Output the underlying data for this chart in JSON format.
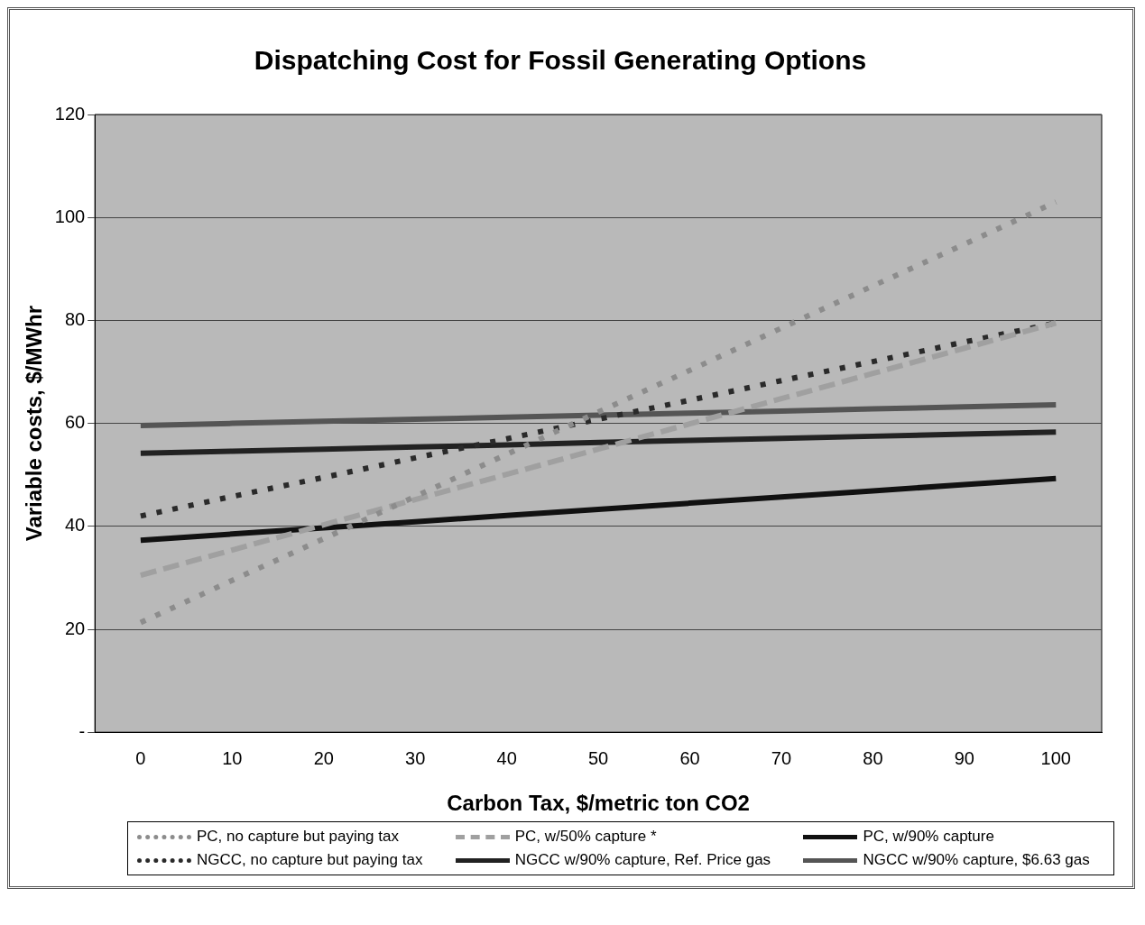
{
  "chart_data": {
    "type": "line",
    "title": "Dispatching Cost for Fossil Generating Options",
    "xlabel": "Carbon Tax, $/metric ton CO2",
    "ylabel": "Variable costs, $/MWhr",
    "categories": [
      "0",
      "10",
      "20",
      "30",
      "40",
      "50",
      "60",
      "70",
      "80",
      "90",
      "100"
    ],
    "ylim": [
      0,
      120
    ],
    "yticks": [
      {
        "value": 0,
        "label": "-"
      },
      20,
      40,
      60,
      80,
      100,
      120
    ],
    "grid": "y",
    "legend": "bottom",
    "marker": "none",
    "series": [
      {
        "name": "PC, no capture but paying tax",
        "color": "#8c8c8c",
        "line_style": "dotted",
        "values": [
          21.3,
          29.5,
          37.6,
          45.8,
          54.0,
          62.2,
          70.3,
          78.5,
          86.7,
          94.8,
          103.0
        ]
      },
      {
        "name": "PC, w/50% capture *",
        "color": "#a0a0a0",
        "line_style": "dashed",
        "values": [
          30.5,
          35.4,
          40.3,
          45.2,
          50.1,
          55.0,
          59.9,
          64.8,
          69.7,
          74.6,
          79.5
        ]
      },
      {
        "name": "PC, w/90% capture",
        "color": "#111111",
        "line_style": "solid",
        "values": [
          37.3,
          38.5,
          39.7,
          40.9,
          42.1,
          43.3,
          44.5,
          45.7,
          46.9,
          48.1,
          49.3
        ]
      },
      {
        "name": "NGCC, no capture but paying tax",
        "color": "#2a2a2a",
        "line_style": "dotted",
        "values": [
          42.0,
          45.8,
          49.5,
          53.3,
          57.0,
          60.8,
          64.5,
          68.3,
          72.0,
          75.8,
          79.5
        ]
      },
      {
        "name": "NGCC w/90% capture, Ref. Price gas",
        "color": "#222222",
        "line_style": "solid",
        "values": [
          54.2,
          54.6,
          55.0,
          55.4,
          55.8,
          56.3,
          56.7,
          57.1,
          57.5,
          57.9,
          58.3
        ]
      },
      {
        "name": "NGCC w/90% capture, $6.63 gas",
        "color": "#555555",
        "line_style": "solid",
        "values": [
          59.6,
          60.0,
          60.4,
          60.8,
          61.2,
          61.6,
          62.0,
          62.4,
          62.8,
          63.2,
          63.6
        ]
      }
    ]
  }
}
